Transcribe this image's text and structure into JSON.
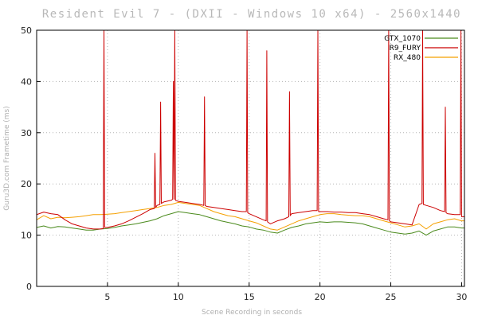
{
  "chart_data": {
    "type": "line",
    "title": "Resident Evil 7 - (DXII - Windows 10 x64) - 2560x1440",
    "xlabel": "Scene Recording in seconds",
    "ylabel": "Guru3D.com Frametime (ms)",
    "xlim": [
      0,
      30.2
    ],
    "ylim": [
      0,
      50
    ],
    "xticks": [
      5,
      10,
      15,
      20,
      25,
      30
    ],
    "yticks": [
      0,
      10,
      20,
      30,
      40,
      50
    ],
    "grid": true,
    "legend_position": "top-right",
    "series": [
      {
        "name": "GTX_1070",
        "color": "#4a8a1c",
        "x": [
          0,
          0.5,
          1,
          1.5,
          2,
          2.5,
          3,
          3.5,
          4,
          4.5,
          5,
          5.5,
          6,
          6.5,
          7,
          7.5,
          8,
          8.5,
          9,
          9.5,
          10,
          10.5,
          11,
          11.5,
          12,
          12.5,
          13,
          13.5,
          14,
          14.5,
          15,
          15.5,
          16,
          16.5,
          17,
          17.5,
          18,
          18.5,
          19,
          19.5,
          20,
          20.5,
          21,
          21.5,
          22,
          22.5,
          23,
          23.5,
          24,
          24.5,
          25,
          25.5,
          26,
          26.5,
          27,
          27.5,
          28,
          28.5,
          29,
          29.5,
          30,
          30.2
        ],
        "values": [
          11.5,
          11.8,
          11.4,
          11.7,
          11.6,
          11.4,
          11.2,
          11.0,
          11.0,
          11.2,
          11.3,
          11.5,
          11.8,
          12.0,
          12.2,
          12.5,
          12.8,
          13.2,
          13.8,
          14.2,
          14.6,
          14.4,
          14.2,
          14.0,
          13.6,
          13.2,
          12.8,
          12.5,
          12.2,
          11.8,
          11.6,
          11.2,
          11.0,
          10.6,
          10.4,
          11.0,
          11.5,
          11.8,
          12.2,
          12.4,
          12.6,
          12.5,
          12.6,
          12.6,
          12.5,
          12.4,
          12.2,
          11.8,
          11.4,
          11.0,
          10.6,
          10.4,
          10.2,
          10.4,
          10.8,
          10.0,
          10.8,
          11.2,
          11.6,
          11.6,
          11.4,
          11.4
        ]
      },
      {
        "name": "R9_FURY",
        "color": "#cc0000",
        "x": [
          0,
          0.5,
          1,
          1.5,
          2,
          2.5,
          3,
          3.5,
          4,
          4.5,
          4.7,
          4.75,
          4.8,
          5,
          5.5,
          6,
          6.5,
          7,
          7.5,
          8,
          8.3,
          8.35,
          8.4,
          8.5,
          8.7,
          8.75,
          8.8,
          9,
          9.5,
          9.6,
          9.65,
          9.7,
          9.75,
          9.8,
          10,
          10.5,
          11,
          11.5,
          11.8,
          11.85,
          11.9,
          12,
          12.5,
          13,
          13.5,
          14,
          14.5,
          14.8,
          14.85,
          14.9,
          15,
          15.5,
          16,
          16.2,
          16.25,
          16.3,
          16.5,
          17,
          17.5,
          17.8,
          17.85,
          17.9,
          18,
          18.5,
          19,
          19.5,
          19.8,
          19.85,
          19.9,
          20,
          20.5,
          21,
          21.5,
          22,
          22.5,
          23,
          23.5,
          24,
          24.5,
          24.8,
          24.85,
          24.9,
          25,
          25.5,
          26,
          26.5,
          27,
          27.2,
          27.25,
          27.3,
          27.5,
          28,
          28.5,
          28.8,
          28.85,
          28.9,
          29,
          29.5,
          29.9,
          29.95,
          30,
          30.2
        ],
        "values": [
          14.0,
          14.5,
          14.2,
          14.0,
          13.0,
          12.2,
          11.8,
          11.4,
          11.2,
          11.2,
          11.3,
          50,
          11.5,
          11.5,
          11.8,
          12.2,
          12.8,
          13.5,
          14.2,
          15.0,
          15.2,
          26.0,
          15.4,
          15.8,
          16.0,
          36.0,
          16.2,
          16.5,
          16.8,
          17.0,
          40.0,
          17.0,
          50,
          16.8,
          16.6,
          16.4,
          16.2,
          16.0,
          15.8,
          37.0,
          15.8,
          15.6,
          15.4,
          15.2,
          15.0,
          14.8,
          14.6,
          14.6,
          50,
          14.4,
          14.2,
          13.6,
          13.0,
          12.8,
          46.0,
          12.6,
          12.2,
          12.8,
          13.2,
          13.6,
          38.0,
          13.8,
          14.2,
          14.4,
          14.6,
          14.8,
          14.8,
          50,
          14.6,
          14.6,
          14.6,
          14.5,
          14.5,
          14.4,
          14.4,
          14.2,
          14.0,
          13.6,
          13.2,
          13.0,
          50,
          12.8,
          12.6,
          12.4,
          12.2,
          12.0,
          16.0,
          16.2,
          50,
          16.0,
          15.8,
          15.4,
          14.8,
          14.6,
          35.0,
          14.4,
          14.2,
          14.0,
          14.0,
          50,
          13.6,
          13.6
        ]
      },
      {
        "name": "RX_480",
        "color": "#f5a000",
        "x": [
          0,
          0.5,
          1,
          1.5,
          2,
          2.5,
          3,
          3.5,
          4,
          4.5,
          5,
          5.5,
          6,
          6.5,
          7,
          7.5,
          8,
          8.5,
          9,
          9.5,
          10,
          10.5,
          11,
          11.5,
          12,
          12.5,
          13,
          13.5,
          14,
          14.5,
          15,
          15.5,
          16,
          16.5,
          17,
          17.5,
          18,
          18.5,
          19,
          19.5,
          20,
          20.5,
          21,
          21.5,
          22,
          22.5,
          23,
          23.5,
          24,
          24.5,
          25,
          25.5,
          26,
          26.5,
          27,
          27.5,
          28,
          28.5,
          29,
          29.5,
          30,
          30.2
        ],
        "values": [
          13.0,
          13.8,
          13.2,
          13.5,
          13.4,
          13.5,
          13.6,
          13.8,
          14.0,
          14.0,
          14.1,
          14.2,
          14.4,
          14.6,
          14.8,
          15.0,
          15.2,
          15.4,
          15.8,
          16.0,
          16.4,
          16.2,
          16.0,
          15.8,
          15.2,
          14.6,
          14.2,
          13.8,
          13.6,
          13.2,
          12.8,
          12.4,
          11.8,
          11.2,
          11.0,
          11.6,
          12.2,
          12.8,
          13.2,
          13.6,
          14.0,
          14.2,
          14.2,
          14.0,
          13.9,
          13.8,
          13.8,
          13.6,
          13.2,
          12.8,
          12.4,
          12.0,
          11.6,
          11.8,
          12.2,
          11.2,
          12.2,
          12.6,
          13.0,
          13.2,
          12.8,
          12.8
        ]
      }
    ]
  }
}
